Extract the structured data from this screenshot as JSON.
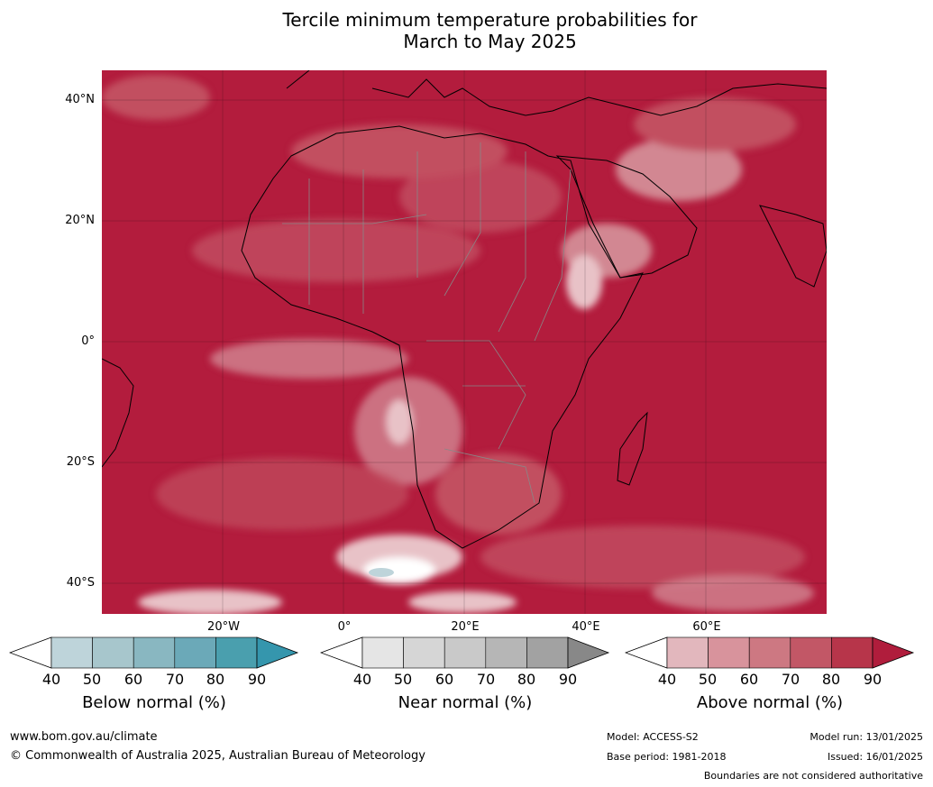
{
  "title_line1": "Tercile minimum temperature probabilities for",
  "title_line2": "March to May 2025",
  "lat_labels": [
    "40°N",
    "20°N",
    "0°",
    "20°S",
    "40°S"
  ],
  "lon_labels": [
    "20°W",
    "0°",
    "20°E",
    "40°E",
    "60°E"
  ],
  "colorbars": [
    {
      "label": "Below normal (%)",
      "ticks": [
        "40",
        "50",
        "60",
        "70",
        "80",
        "90"
      ],
      "colors": [
        "#ffffff",
        "#bed4da",
        "#a7c6cc",
        "#89b7c1",
        "#6ba9b8",
        "#4a9fae",
        "#3596ad"
      ]
    },
    {
      "label": "Near normal (%)",
      "ticks": [
        "40",
        "50",
        "60",
        "70",
        "80",
        "90"
      ],
      "colors": [
        "#ffffff",
        "#e5e5e5",
        "#d6d6d6",
        "#c9c9c9",
        "#b6b6b6",
        "#a2a2a2",
        "#888888"
      ]
    },
    {
      "label": "Above normal (%)",
      "ticks": [
        "40",
        "50",
        "60",
        "70",
        "80",
        "90"
      ],
      "colors": [
        "#ffffff",
        "#e2b7bd",
        "#d8939c",
        "#cd7882",
        "#c25766",
        "#b7354a",
        "#b01d3c"
      ]
    }
  ],
  "footer": {
    "website": "www.bom.gov.au/climate",
    "copyright": "© Commonwealth of Australia 2025, Australian Bureau of Meteorology",
    "model": "Model: ACCESS-S2",
    "base_period": "Base period: 1981-2018",
    "model_run": "Model run: 13/01/2025",
    "issued": "Issued: 16/01/2025",
    "disclaimer": "Boundaries are not considered authoritative"
  },
  "map_colors": {
    "ocean_dominant": "#b31c3d",
    "mid": "#c24f61",
    "light": "#d28792",
    "pale": "#e8c2c7",
    "land_outline": "#000000",
    "borders": "#888888"
  }
}
